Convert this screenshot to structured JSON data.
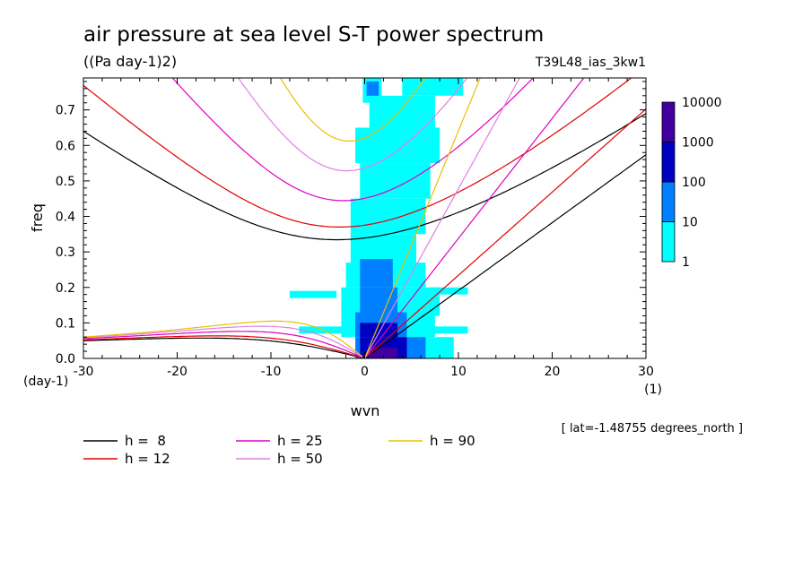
{
  "chart_data": {
    "type": "heatmap",
    "title": "air pressure at sea level S-T power spectrum",
    "subtitle": "((Pa day-1)2)",
    "experiment": "T39L48_ias_3kw1",
    "xlabel": "wvn",
    "x_unit": "(1)",
    "ylabel": "freq",
    "y_unit": "(day-1)",
    "xlim": [
      -30,
      30
    ],
    "ylim": [
      0,
      0.79
    ],
    "xticks": [
      "-30",
      "-20",
      "-10",
      "0",
      "10",
      "20",
      "30"
    ],
    "yticks": [
      "0.0",
      "0.1",
      "0.2",
      "0.3",
      "0.4",
      "0.5",
      "0.6",
      "0.7"
    ],
    "annotation": "[ lat=-1.48755 degrees_north ]",
    "colorbar": {
      "levels": [
        "1",
        "10",
        "100",
        "1000",
        "10000"
      ],
      "colors": [
        "#00ffff",
        "#0080ff",
        "#0000c0",
        "#4000a0"
      ]
    },
    "dispersion_legend": [
      {
        "label": "h =  8",
        "color": "#000000"
      },
      {
        "label": "h = 12",
        "color": "#e00000"
      },
      {
        "label": "h = 25",
        "color": "#e000c0"
      },
      {
        "label": "h = 50",
        "color": "#e080e0"
      },
      {
        "label": "h = 90",
        "color": "#e8c000"
      }
    ],
    "heatmap_cells": [
      {
        "level": 1,
        "x": [
          0.5,
          9.5
        ],
        "y": [
          0.0,
          0.06
        ]
      },
      {
        "level": 1,
        "x": [
          -2.5,
          7.5
        ],
        "y": [
          0.06,
          0.12
        ]
      },
      {
        "level": 1,
        "x": [
          -7,
          11
        ],
        "y": [
          0.07,
          0.09
        ]
      },
      {
        "level": 1,
        "x": [
          -2.5,
          8
        ],
        "y": [
          0.12,
          0.2
        ]
      },
      {
        "level": 1,
        "x": [
          -8,
          -3
        ],
        "y": [
          0.17,
          0.19
        ]
      },
      {
        "level": 1,
        "x": [
          7,
          11
        ],
        "y": [
          0.18,
          0.2
        ]
      },
      {
        "level": 1,
        "x": [
          -2,
          6.5
        ],
        "y": [
          0.2,
          0.27
        ]
      },
      {
        "level": 1,
        "x": [
          -1.5,
          5.5
        ],
        "y": [
          0.27,
          0.35
        ]
      },
      {
        "level": 1,
        "x": [
          -1.5,
          6.5
        ],
        "y": [
          0.35,
          0.45
        ]
      },
      {
        "level": 1,
        "x": [
          -0.5,
          7
        ],
        "y": [
          0.45,
          0.55
        ]
      },
      {
        "level": 1,
        "x": [
          -1,
          8
        ],
        "y": [
          0.55,
          0.65
        ]
      },
      {
        "level": 1,
        "x": [
          0.5,
          7.5
        ],
        "y": [
          0.65,
          0.74
        ]
      },
      {
        "level": 1,
        "x": [
          4,
          10.5
        ],
        "y": [
          0.74,
          0.79
        ]
      },
      {
        "level": 1,
        "x": [
          -0.2,
          1.8
        ],
        "y": [
          0.72,
          0.79
        ]
      },
      {
        "level": 2,
        "x": [
          -1,
          6.5
        ],
        "y": [
          0.0,
          0.06
        ]
      },
      {
        "level": 2,
        "x": [
          -1,
          4.5
        ],
        "y": [
          0.06,
          0.13
        ]
      },
      {
        "level": 2,
        "x": [
          -0.5,
          3.5
        ],
        "y": [
          0.13,
          0.2
        ]
      },
      {
        "level": 2,
        "x": [
          -0.5,
          3
        ],
        "y": [
          0.2,
          0.28
        ]
      },
      {
        "level": 2,
        "x": [
          0.2,
          1.5
        ],
        "y": [
          0.74,
          0.78
        ]
      },
      {
        "level": 3,
        "x": [
          -0.5,
          4.5
        ],
        "y": [
          0.0,
          0.06
        ]
      },
      {
        "level": 3,
        "x": [
          -0.5,
          3.5
        ],
        "y": [
          0.06,
          0.1
        ]
      },
      {
        "level": 4,
        "x": [
          0.5,
          3.5
        ],
        "y": [
          0.0,
          0.03
        ]
      }
    ]
  }
}
